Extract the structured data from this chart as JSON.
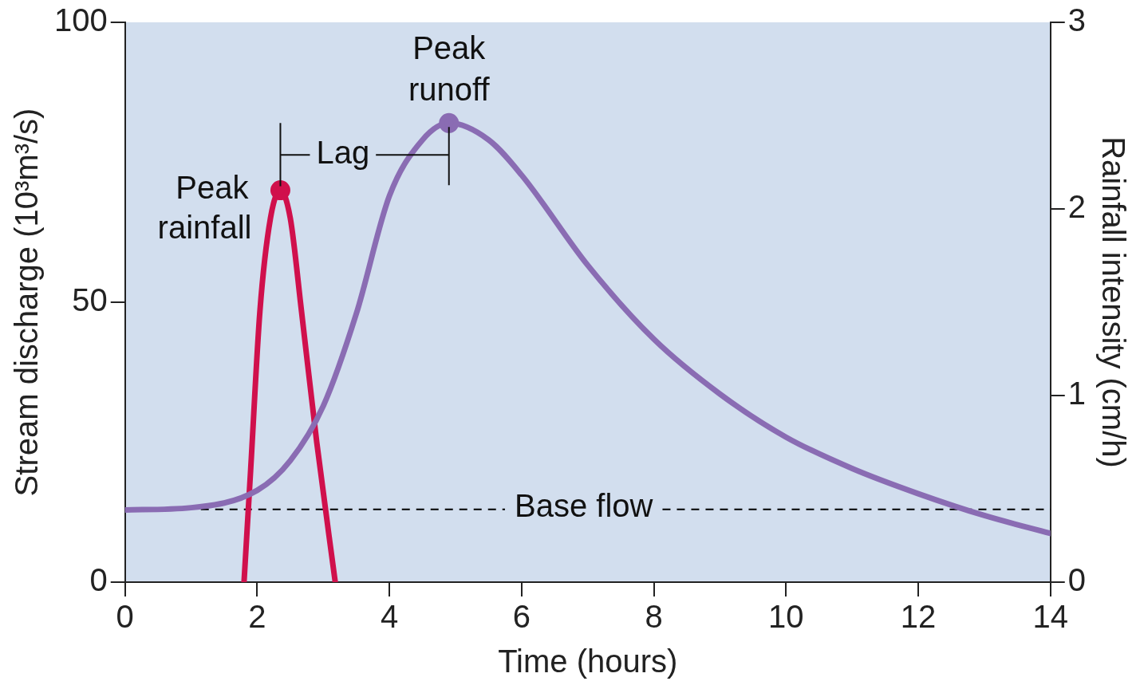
{
  "chart_data": {
    "type": "line",
    "xlabel": "Time (hours)",
    "ylabel": "Stream discharge (10³m³/s)",
    "y2label": "Rainfall intensity (cm/h)",
    "xlim": [
      0,
      14
    ],
    "xticks": [
      0,
      2,
      4,
      6,
      8,
      10,
      12,
      14
    ],
    "ylim": [
      0,
      100
    ],
    "yticks": [
      0,
      50,
      100
    ],
    "y2lim": [
      0,
      3
    ],
    "y2ticks": [
      0,
      1,
      2,
      3
    ],
    "series": [
      {
        "color": "#8a6cb3",
        "x": [
          0,
          1,
          2,
          2.5,
          3,
          3.5,
          4,
          4.5,
          4.9,
          5.5,
          6,
          7,
          8,
          9,
          10,
          11,
          12,
          13,
          14
        ],
        "values": [
          12.9,
          13.3,
          16.4,
          21.7,
          31.5,
          48,
          69,
          79,
          82,
          79,
          72.7,
          56.6,
          43.4,
          33.6,
          25.9,
          20.3,
          15.8,
          11.9,
          8.7
        ]
      },
      {
        "color": "#d0104c",
        "axis": "y2",
        "x": [
          1.8,
          1.9,
          2.04,
          2.2,
          2.35,
          2.5,
          2.67,
          2.9,
          3.18
        ],
        "values": [
          0,
          0.6,
          1.45,
          1.95,
          2.1,
          1.95,
          1.45,
          0.75,
          0
        ]
      }
    ],
    "ref_lines": [
      {
        "axis": "y",
        "value": 13,
        "label": "Base flow",
        "line_style": "dashed",
        "color": "#000000"
      }
    ],
    "annotations": [
      {
        "text": "Peak runoff",
        "x": 4.9,
        "y": 82
      },
      "Peak rainfall",
      "Lag"
    ],
    "marker": "none",
    "line_style": "solid",
    "legend": false
  }
}
